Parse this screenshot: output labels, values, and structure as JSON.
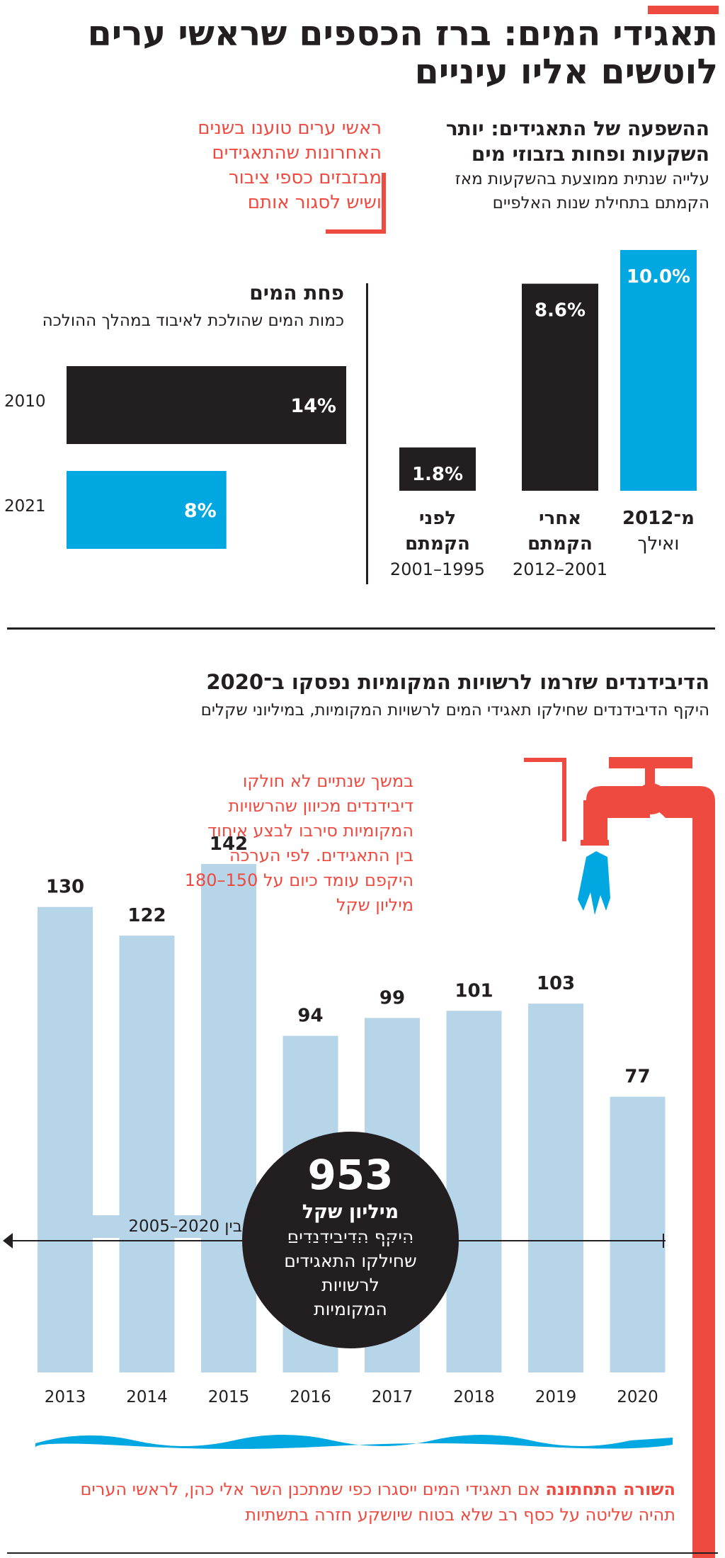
{
  "header": {
    "title_line1": "תאגידי המים: ברז הכספים שראשי ערים",
    "title_line2": "לוטשים אליו עיניים"
  },
  "quote": {
    "lines": [
      "ראשי ערים טוענו בשנים",
      "האחרונות שהתאגידים",
      "מבזבזים כספי ציבור",
      "ושיש לסגור אותם"
    ]
  },
  "investment_section": {
    "heading_line1": "ההשפעה של התאגידים: יותר",
    "heading_line2": "השקעות ופחות בזבוזי מים",
    "sub_line1": "עלייה שנתית ממוצעת בהשקעות מאז",
    "sub_line2": "הקמתם בתחילת שנות האלפיים"
  },
  "loss_section": {
    "heading": "פחת המים",
    "sub": "כמות המים שהולכת לאיבוד במהלך ההולכה"
  },
  "dividends_section": {
    "heading": "הדיבידנדים שזרמו לרשויות המקומיות נפסקו ב־2020",
    "sub": "היקף הדיבידנדים שחילקו תאגידי המים לרשויות המקומיות, במיליוני שקלים",
    "note_lines": [
      "במשך שנתיים לא חולקו",
      "דיבידנדים מכיוון שהרשויות",
      "המקומיות סירבו לבצע איחוד",
      "בין התאגידים. לפי הערכה",
      "היקפם עומד כיום על 150–180",
      "מיליון שקל"
    ],
    "range_label": "בין 2020–2005",
    "circle_value": "953",
    "circle_unit": "מיליון שקל",
    "circle_lines": [
      "היקף הדיבידנדים",
      "שחילקו התאגידים",
      "לרשויות",
      "המקומיות"
    ]
  },
  "footer": {
    "bold_lead": "השורה התחתונה",
    "line1_rest": " אם תאגידי המים ייסגרו כפי שמתכנן השר אלי כהן, לראשי הערים",
    "line2": "תהיה שליטה על כסף רב שלא בטוח שיושקע חזרה בתשתיות"
  },
  "colors": {
    "accent_red": "#ef4a3f",
    "bar_black": "#231f20",
    "bar_blue": "#00a7e1",
    "bar_light": "#b7d5e8"
  },
  "chart_data": [
    {
      "type": "bar",
      "orientation": "vertical",
      "categories": [
        {
          "line1": "מ־2012",
          "line2": "ואילך",
          "line3": ""
        },
        {
          "line1": "אחרי",
          "line2": "הקמתם",
          "line3": "2012–2001"
        },
        {
          "line1": "לפני",
          "line2": "הקמתם",
          "line3": "2001–1995"
        }
      ],
      "values": [
        10.0,
        8.6,
        1.8
      ],
      "value_labels": [
        "10.0%",
        "8.6%",
        "1.8%"
      ],
      "bar_colors": [
        "#00a7e1",
        "#231f20",
        "#231f20"
      ],
      "ylim": [
        0,
        10
      ]
    },
    {
      "type": "bar",
      "orientation": "horizontal",
      "categories": [
        "2010",
        "2021"
      ],
      "values": [
        14,
        8
      ],
      "value_labels": [
        "14%",
        "8%"
      ],
      "bar_colors": [
        "#231f20",
        "#00a7e1"
      ],
      "xlim": [
        0,
        14
      ]
    },
    {
      "type": "bar",
      "orientation": "vertical",
      "categories": [
        "2013",
        "2014",
        "2015",
        "2016",
        "2017",
        "2018",
        "2019",
        "2020"
      ],
      "values": [
        130,
        122,
        142,
        94,
        99,
        101,
        103,
        77
      ],
      "value_labels": [
        "130",
        "122",
        "142",
        "94",
        "99",
        "101",
        "103",
        "77"
      ],
      "ylim": [
        0,
        142
      ]
    }
  ]
}
